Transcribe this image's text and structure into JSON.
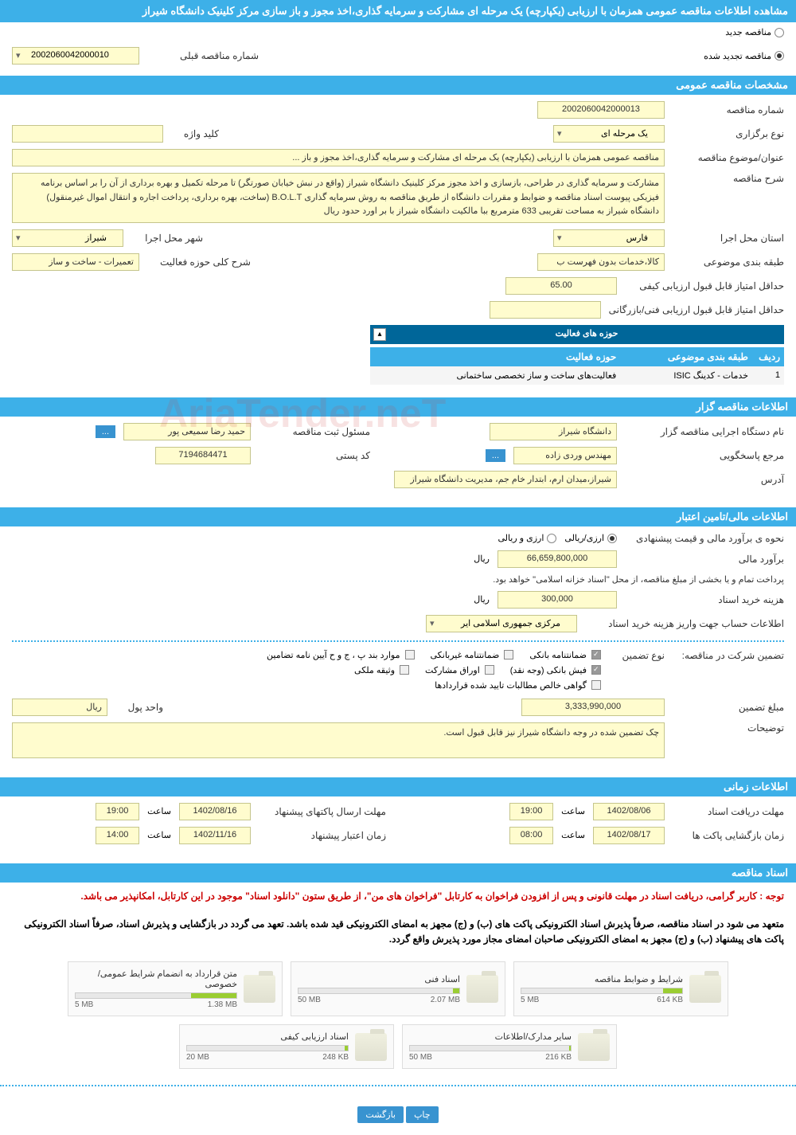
{
  "header": {
    "title": "مشاهده اطلاعات مناقصه عمومی همزمان با ارزیابی (یکپارچه) یک مرحله ای مشارکت و سرمایه گذاری،اخذ مجوز و باز سازی مرکز کلینیک دانشگاه شیراز"
  },
  "radios": {
    "new_tender": "مناقصه جدید",
    "renewed_tender": "مناقصه تجدید شده",
    "prev_number_label": "شماره مناقصه قبلی",
    "prev_number": "2002060042000010"
  },
  "section_titles": {
    "general": "مشخصات مناقصه عمومی",
    "activity_areas": "حوزه های فعالیت",
    "organizer": "اطلاعات مناقصه گزار",
    "financial": "اطلاعات مالی/تامین اعتبار",
    "timing": "اطلاعات زمانی",
    "documents": "اسناد مناقصه"
  },
  "general": {
    "tender_number_label": "شماره مناقصه",
    "tender_number": "2002060042000013",
    "holding_type_label": "نوع برگزاری",
    "holding_type": "یک مرحله ای",
    "keyword_label": "کلید واژه",
    "keyword": "",
    "subject_label": "عنوان/موضوع مناقصه",
    "subject": "مناقصه عمومی همزمان با ارزیابی (یکپارچه) یک مرحله ای مشارکت و سرمایه گذاری،اخذ مجوز و باز ...",
    "description_label": "شرح مناقصه",
    "description": "مشارکت و سرمایه گذاری در طراحی، بازسازی و اخذ مجوز  مرکز کلینیک دانشگاه شیراز (واقع در نبش خیابان صورتگر) تا مرحله تکمیل و بهره برداری از آن را بر اساس برنامه فیزیکی پیوست اسناد مناقصه و ضوابط و مقررات دانشگاه از طریق مناقصه به روش سرمایه گذاری B.O.L.T (ساخت، بهره برداری، پرداخت اجاره و انتقال اموال غیرمنقول) دانشگاه شیراز به مساحت تقریبی 633 مترمربع ببا مالکیت دانشگاه شیراز با بر اورد حدود    ریال",
    "province_label": "استان محل اجرا",
    "province": "فارس",
    "city_label": "شهر محل اجرا",
    "city": "شیراز",
    "classification_label": "طبقه بندی موضوعی",
    "classification": "کالا،خدمات بدون فهرست ب",
    "activity_scope_label": "شرح کلی حوزه فعالیت",
    "activity_scope": "تعمیرات - ساخت و ساز",
    "min_quality_score_label": "حداقل امتیاز قابل قبول ارزیابی کیفی",
    "min_quality_score": "65.00",
    "min_tech_score_label": "حداقل امتیاز قابل قبول ارزیابی فنی/بازرگانی",
    "min_tech_score": ""
  },
  "activity_table": {
    "col_row": "ردیف",
    "col_classification": "طبقه بندی موضوعی",
    "col_activity": "حوزه فعالیت",
    "rows": [
      {
        "num": "1",
        "classification": "خدمات - کدینگ ISIC",
        "activity": "فعالیت‌های ساخت و ساز تخصصی ساختمانی"
      }
    ]
  },
  "organizer": {
    "exec_org_label": "نام دستگاه اجرایی مناقصه گزار",
    "exec_org": "دانشگاه شیراز",
    "registrar_label": "مسئول ثبت مناقصه",
    "registrar": "حمید رضا سمیعی پور",
    "responder_label": "مرجع پاسخگویی",
    "responder": "مهندس وردی زاده",
    "postal_label": "کد پستی",
    "postal": "7194684471",
    "address_label": "آدرس",
    "address": "شیراز،میدان ارم، ابتدار خام جم، مدیریت دانشگاه شیراز",
    "more_btn": "..."
  },
  "financial": {
    "estimate_type_label": "نحوه ی برآورد مالی و قیمت پیشنهادی",
    "opt_currency": "ارزی/ریالی",
    "opt_currency_rial": "ارزی و ریالی",
    "estimate_label": "برآورد مالی",
    "estimate": "66,659,800,000",
    "estimate_unit": "ریال",
    "payment_note": "پرداخت تمام و یا بخشی از مبلغ مناقصه، از محل \"اسناد خزانه اسلامی\" خواهد بود.",
    "doc_cost_label": "هزینه خرید اسناد",
    "doc_cost": "300,000",
    "doc_cost_unit": "ریال",
    "account_label": "اطلاعات حساب جهت واریز هزینه خرید اسناد",
    "account": "مرکزی جمهوری اسلامی ایر",
    "guarantee_label": "تضمین شرکت در مناقصه:",
    "guarantee_type_label": "نوع تضمین",
    "chk_bank_guarantee": "ضمانتنامه بانکی",
    "chk_nonbank_guarantee": "ضمانتنامه غیربانکی",
    "chk_clause": "موارد بند پ ، ج و ح آیین نامه تضامین",
    "chk_bank_receipt": "فیش بانکی (وجه نقد)",
    "chk_participation": "اوراق مشارکت",
    "chk_property": "وثیقه ملکی",
    "chk_receivables": "گواهی خالص مطالبات تایید شده قراردادها",
    "guarantee_amount_label": "مبلغ تضمین",
    "guarantee_amount": "3,333,990,000",
    "currency_unit_label": "واحد پول",
    "currency_unit": "ریال",
    "notes_label": "توضیحات",
    "notes": "چک تضمین شده در وجه دانشگاه شیراز نیز قابل قبول است."
  },
  "timing": {
    "doc_receive_label": "مهلت دریافت اسناد",
    "doc_receive_date": "1402/08/06",
    "doc_receive_time_label": "ساعت",
    "doc_receive_time": "19:00",
    "proposal_send_label": "مهلت ارسال پاکتهای پیشنهاد",
    "proposal_send_date": "1402/08/16",
    "proposal_send_time": "19:00",
    "envelope_open_label": "زمان بازگشایی پاکت ها",
    "envelope_open_date": "1402/08/17",
    "envelope_open_time": "08:00",
    "validity_label": "زمان اعتبار پیشنهاد",
    "validity_date": "1402/11/16",
    "validity_time": "14:00"
  },
  "documents": {
    "notice1": "توجه : کاربر گرامی، دریافت اسناد در مهلت قانونی و پس از افزودن فراخوان به کارتابل \"فراخوان های من\"، از طریق ستون \"دانلود اسناد\" موجود در این کارتابل، امکانپذیر می باشد.",
    "notice2": "متعهد می شود در اسناد مناقصه، صرفاً پذیرش اسناد الکترونیکی پاکت های (ب) و (ج) مجهز به امضای الکترونیکی قید شده باشد. تعهد می گردد در بازگشایی و پذیرش اسناد، صرفاً اسناد الکترونیکی پاکت های پیشنهاد (ب) و (ج) مجهز به امضای الکترونیکی صاحبان امضای مجاز مورد پذیرش واقع گردد.",
    "files": [
      {
        "title": "شرایط و ضوابط مناقصه",
        "size": "614 KB",
        "max": "5 MB",
        "pct": 12
      },
      {
        "title": "اسناد فنی",
        "size": "2.07 MB",
        "max": "50 MB",
        "pct": 4
      },
      {
        "title": "متن قرارداد به انضمام شرایط عمومی/خصوصی",
        "size": "1.38 MB",
        "max": "5 MB",
        "pct": 28
      },
      {
        "title": "سایر مدارک/اطلاعات",
        "size": "216 KB",
        "max": "50 MB",
        "pct": 1
      },
      {
        "title": "اسناد ارزیابی کیفی",
        "size": "248 KB",
        "max": "20 MB",
        "pct": 2
      }
    ]
  },
  "footer": {
    "print": "چاپ",
    "back": "بازگشت"
  },
  "colors": {
    "primary": "#3db0e8",
    "dark": "#006699",
    "field_bg": "#fffcce",
    "field_border": "#c5c58c",
    "notice_red": "#cc0000"
  }
}
